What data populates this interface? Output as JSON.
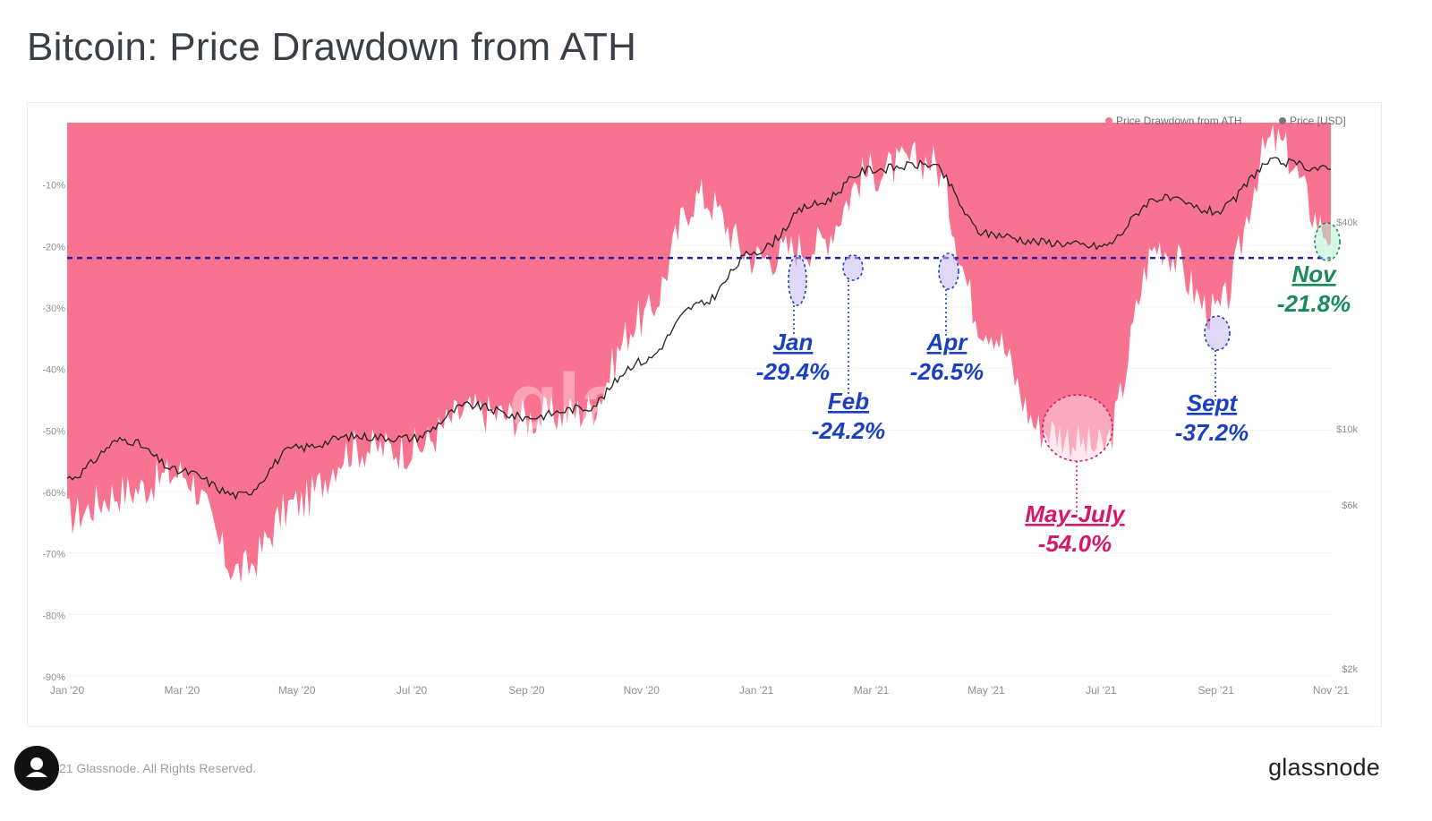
{
  "page": {
    "title": "Bitcoin: Price Drawdown from ATH",
    "footer_copyright": "21 Glassnode. All Rights Reserved.",
    "brand": "glassnode",
    "watermark": "glassnode"
  },
  "chart_data": {
    "type": "area",
    "title": "Bitcoin: Price Drawdown from ATH",
    "x_ticks": [
      "Jan '20",
      "Mar '20",
      "May '20",
      "Jul '20",
      "Sep '20",
      "Nov '20",
      "Jan '21",
      "Mar '21",
      "May '21",
      "Jul '21",
      "Sep '21",
      "Nov '21"
    ],
    "y_left_ticks": [
      "-10%",
      "-20%",
      "-30%",
      "-40%",
      "-50%",
      "-60%",
      "-70%",
      "-80%",
      "-90%"
    ],
    "y_left_range": [
      -90,
      0
    ],
    "y_right_ticks": [
      "$40k",
      "$10k",
      "$6k",
      "$2k"
    ],
    "legend": {
      "position": "top-right",
      "items": [
        {
          "label": "Price Drawdown from ATH",
          "color": "#f7738f"
        },
        {
          "label": "Price [USD]",
          "color": "#777777"
        }
      ]
    },
    "x": [
      "Jan '20",
      "Feb '20",
      "Mar '20",
      "Apr '20",
      "May '20",
      "Jun '20",
      "Jul '20",
      "Aug '20",
      "Sep '20",
      "Oct '20",
      "Nov '20",
      "Dec '20",
      "Jan '21",
      "Feb '21",
      "Mar '21",
      "Apr '21",
      "May '21",
      "Jun '21",
      "Jul '21",
      "Aug '21",
      "Sep '21",
      "Oct '21",
      "Nov '21"
    ],
    "series": [
      {
        "name": "Price Drawdown from ATH",
        "color": "#f7738f",
        "values": [
          -64,
          -60,
          -57,
          -73,
          -62,
          -53,
          -53,
          -47,
          -48,
          -47,
          -32,
          -12,
          -22,
          -20,
          -8,
          -6,
          -33,
          -50,
          -53,
          -20,
          -31,
          -3,
          -18
        ]
      },
      {
        "name": "Price [USD]",
        "color": "#222222",
        "values": [
          7200,
          9300,
          7500,
          6400,
          8800,
          9500,
          9400,
          11700,
          10800,
          11500,
          15700,
          23000,
          33000,
          45000,
          57000,
          59000,
          37000,
          35000,
          34000,
          47000,
          43000,
          60000,
          57000
        ]
      }
    ],
    "reference_line": {
      "value": -22,
      "color": "#2222aa",
      "style": "dashed"
    },
    "annotations": [
      {
        "label": "Jan",
        "value": "-29.4%",
        "color": "#1a3fc0"
      },
      {
        "label": "Feb",
        "value": "-24.2%",
        "color": "#1a3fc0"
      },
      {
        "label": "Apr",
        "value": "-26.5%",
        "color": "#1a3fc0"
      },
      {
        "label": "May-July",
        "value": "-54.0%",
        "color": "#d4186a"
      },
      {
        "label": "Sept",
        "value": "-37.2%",
        "color": "#1a3fc0"
      },
      {
        "label": "Nov",
        "value": "-21.8%",
        "color": "#1a8a5a"
      }
    ]
  }
}
